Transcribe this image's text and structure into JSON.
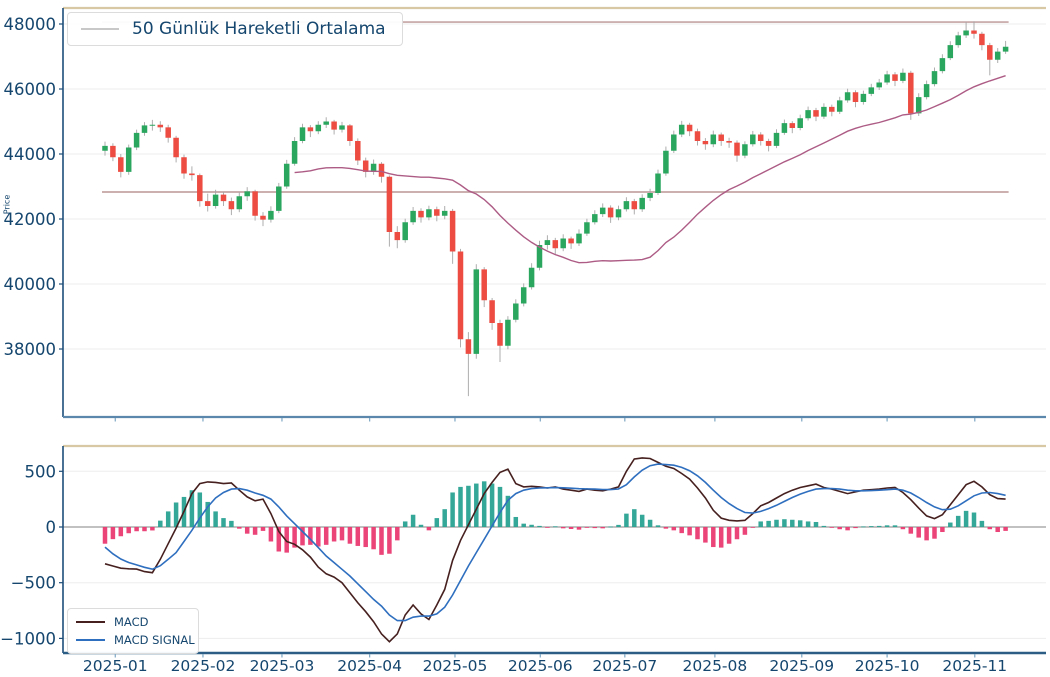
{
  "top_chart": {
    "ylabel": "Price",
    "legend_label": "50 Günlük Hareketli Ortalama",
    "ytick_labels": [
      "48000",
      "46000",
      "44000",
      "42000",
      "40000",
      "38000"
    ],
    "yticks": [
      48000,
      46000,
      44000,
      42000,
      40000,
      38000
    ]
  },
  "bottom_chart": {
    "legend": [
      "MACD",
      "MACD SIGNAL"
    ],
    "ytick_labels": [
      "500",
      "0",
      "−500",
      "−1000"
    ],
    "yticks": [
      500,
      0,
      -500,
      -1000
    ]
  },
  "x_axis": {
    "tick_labels": [
      "2025-01",
      "2025-02",
      "2025-03",
      "2025-04",
      "2025-05",
      "2025-06",
      "2025-07",
      "2025-08",
      "2025-09",
      "2025-10",
      "2025-11"
    ],
    "tick_day_index": [
      1.3,
      12.4,
      22.4,
      33.5,
      44.3,
      55.1,
      65.8,
      77.2,
      88.2,
      99,
      110.1
    ]
  },
  "colors": {
    "up": "#2aa65f",
    "down": "#ec4c41",
    "wick": "#a6a6a6",
    "ma_line": "#ad5c85",
    "hline": "#c2a0a0",
    "macd_line": "#46201f",
    "signal_line": "#2f6fbf",
    "hist_pos": "#2aa293",
    "hist_neg": "#ea3a72",
    "zero_line": "#9c9c9c",
    "grid": "#ededed",
    "spine_top": "#d8c9a4",
    "spine_left": "#1d4e79",
    "spine_bottom_price": "#5b87ad",
    "spine_bottom_macd": "#2b5d85",
    "tick_mark": "#7da7c4",
    "tick_label": "#15466e",
    "legend_sample_ma": "#c8c8c8"
  },
  "chart_data": [
    {
      "type": "candlestick",
      "ylabel": "Price",
      "legend": [
        "50 Günlük Hareketli Ortalama"
      ],
      "ylim": [
        35900,
        48500
      ],
      "yticks": [
        38000,
        40000,
        42000,
        44000,
        46000,
        48000
      ],
      "hlines": [
        48060,
        42830
      ],
      "ma_window_days": 50,
      "sampling_days_per_candle": 2,
      "grid": true,
      "candles": [
        [
          44100,
          44380,
          43950,
          44250
        ],
        [
          44250,
          44330,
          43780,
          43900
        ],
        [
          43900,
          44000,
          43280,
          43450
        ],
        [
          43450,
          44290,
          43360,
          44200
        ],
        [
          44200,
          44750,
          44120,
          44650
        ],
        [
          44650,
          44980,
          44560,
          44880
        ],
        [
          44880,
          45050,
          44720,
          44900
        ],
        [
          44900,
          45010,
          44680,
          44820
        ],
        [
          44820,
          44900,
          44350,
          44500
        ],
        [
          44500,
          44560,
          43740,
          43900
        ],
        [
          43900,
          43980,
          43240,
          43400
        ],
        [
          43400,
          43620,
          43180,
          43350
        ],
        [
          43350,
          43400,
          42380,
          42550
        ],
        [
          42550,
          42780,
          42230,
          42400
        ],
        [
          42400,
          42900,
          42320,
          42750
        ],
        [
          42750,
          42830,
          42400,
          42550
        ],
        [
          42550,
          42660,
          42120,
          42300
        ],
        [
          42300,
          42820,
          42210,
          42700
        ],
        [
          42700,
          42980,
          42560,
          42850
        ],
        [
          42850,
          42900,
          41950,
          42100
        ],
        [
          42100,
          42210,
          41780,
          41980
        ],
        [
          41980,
          42390,
          41890,
          42250
        ],
        [
          42250,
          43110,
          42180,
          43000
        ],
        [
          43000,
          43820,
          42930,
          43700
        ],
        [
          43700,
          44520,
          43640,
          44400
        ],
        [
          44400,
          44930,
          44330,
          44820
        ],
        [
          44820,
          44890,
          44520,
          44700
        ],
        [
          44700,
          45010,
          44610,
          44900
        ],
        [
          44900,
          45130,
          44800,
          45000
        ],
        [
          45000,
          45050,
          44600,
          44750
        ],
        [
          44750,
          44990,
          44660,
          44880
        ],
        [
          44880,
          44920,
          44250,
          44400
        ],
        [
          44400,
          44480,
          43660,
          43800
        ],
        [
          43800,
          43890,
          43280,
          43450
        ],
        [
          43450,
          43830,
          43360,
          43700
        ],
        [
          43700,
          43750,
          43120,
          43300
        ],
        [
          43300,
          43340,
          41150,
          41600
        ],
        [
          41600,
          41780,
          41100,
          41350
        ],
        [
          41350,
          42010,
          41270,
          41900
        ],
        [
          41900,
          42370,
          41820,
          42250
        ],
        [
          42250,
          42330,
          41890,
          42050
        ],
        [
          42050,
          42410,
          41960,
          42300
        ],
        [
          42300,
          42380,
          41930,
          42100
        ],
        [
          42100,
          42400,
          41990,
          42250
        ],
        [
          42250,
          42310,
          40620,
          41000
        ],
        [
          41000,
          41080,
          38050,
          38300
        ],
        [
          38300,
          38520,
          36550,
          37850
        ],
        [
          37850,
          40610,
          37700,
          40450
        ],
        [
          40450,
          40520,
          39290,
          39500
        ],
        [
          39500,
          39570,
          38590,
          38800
        ],
        [
          38800,
          38900,
          37600,
          38100
        ],
        [
          38100,
          39010,
          37990,
          38900
        ],
        [
          38900,
          39530,
          38820,
          39400
        ],
        [
          39400,
          40020,
          39310,
          39900
        ],
        [
          39900,
          40640,
          39830,
          40500
        ],
        [
          40500,
          41330,
          40420,
          41200
        ],
        [
          41200,
          41500,
          41060,
          41350
        ],
        [
          41350,
          41420,
          40910,
          41100
        ],
        [
          41100,
          41530,
          41010,
          41400
        ],
        [
          41400,
          41460,
          41080,
          41250
        ],
        [
          41250,
          41680,
          41170,
          41550
        ],
        [
          41550,
          42010,
          41480,
          41900
        ],
        [
          41900,
          42270,
          41830,
          42150
        ],
        [
          42150,
          42480,
          42060,
          42350
        ],
        [
          42350,
          42420,
          41880,
          42050
        ],
        [
          42050,
          42410,
          41960,
          42300
        ],
        [
          42300,
          42670,
          42230,
          42550
        ],
        [
          42550,
          42620,
          42140,
          42300
        ],
        [
          42300,
          42760,
          42220,
          42650
        ],
        [
          42650,
          42930,
          42550,
          42800
        ],
        [
          42800,
          43520,
          42740,
          43400
        ],
        [
          43400,
          44230,
          43330,
          44100
        ],
        [
          44100,
          44720,
          44030,
          44600
        ],
        [
          44600,
          45020,
          44520,
          44900
        ],
        [
          44900,
          44960,
          44550,
          44700
        ],
        [
          44700,
          44780,
          44260,
          44400
        ],
        [
          44400,
          44490,
          44130,
          44300
        ],
        [
          44300,
          44720,
          44210,
          44600
        ],
        [
          44600,
          44660,
          44250,
          44400
        ],
        [
          44400,
          44500,
          44190,
          44350
        ],
        [
          44350,
          44420,
          43760,
          43950
        ],
        [
          43950,
          44390,
          43870,
          44300
        ],
        [
          44300,
          44710,
          44230,
          44600
        ],
        [
          44600,
          44670,
          44260,
          44400
        ],
        [
          44400,
          44470,
          44080,
          44250
        ],
        [
          44250,
          44760,
          44180,
          44650
        ],
        [
          44650,
          45060,
          44590,
          44950
        ],
        [
          44950,
          45010,
          44640,
          44800
        ],
        [
          44800,
          45210,
          44730,
          45100
        ],
        [
          45100,
          45460,
          45030,
          45350
        ],
        [
          45350,
          45420,
          45010,
          45150
        ],
        [
          45150,
          45560,
          45080,
          45450
        ],
        [
          45450,
          45520,
          45160,
          45300
        ],
        [
          45300,
          45760,
          45230,
          45650
        ],
        [
          45650,
          46010,
          45580,
          45900
        ],
        [
          45900,
          45960,
          45440,
          45600
        ],
        [
          45600,
          45950,
          45520,
          45850
        ],
        [
          45850,
          46160,
          45780,
          46050
        ],
        [
          46050,
          46310,
          45970,
          46200
        ],
        [
          46200,
          46560,
          46130,
          46450
        ],
        [
          46450,
          46520,
          46090,
          46250
        ],
        [
          46250,
          46630,
          46180,
          46500
        ],
        [
          46500,
          46560,
          45050,
          45250
        ],
        [
          45250,
          45870,
          45170,
          45750
        ],
        [
          45750,
          46260,
          45680,
          46150
        ],
        [
          46150,
          46660,
          46080,
          46550
        ],
        [
          46550,
          47070,
          46480,
          46950
        ],
        [
          46950,
          47470,
          46890,
          47350
        ],
        [
          47350,
          47760,
          47270,
          47650
        ],
        [
          47650,
          48060,
          47570,
          47800
        ],
        [
          47800,
          48080,
          47550,
          47700
        ],
        [
          47700,
          47760,
          47190,
          47350
        ],
        [
          47350,
          47420,
          46420,
          46900
        ],
        [
          46900,
          47260,
          46800,
          47150
        ],
        [
          47150,
          47480,
          47080,
          47300
        ]
      ]
    },
    {
      "type": "macd",
      "legend": [
        "MACD",
        "MACD SIGNAL"
      ],
      "ylim": [
        -1131,
        727
      ],
      "yticks": [
        500,
        0,
        -500,
        -1000
      ],
      "macd": [
        -330,
        -350,
        -370,
        -375,
        -378,
        -400,
        -410,
        -290,
        -150,
        -10,
        140,
        300,
        390,
        405,
        400,
        390,
        395,
        330,
        270,
        235,
        250,
        120,
        -40,
        -130,
        -155,
        -205,
        -270,
        -360,
        -420,
        -450,
        -500,
        -590,
        -680,
        -760,
        -850,
        -960,
        -1030,
        -960,
        -790,
        -700,
        -780,
        -830,
        -700,
        -560,
        -300,
        -120,
        20,
        160,
        300,
        400,
        490,
        520,
        390,
        360,
        365,
        360,
        350,
        360,
        340,
        330,
        320,
        340,
        330,
        325,
        340,
        360,
        500,
        610,
        620,
        615,
        580,
        545,
        525,
        480,
        430,
        350,
        260,
        150,
        80,
        60,
        55,
        60,
        120,
        190,
        220,
        260,
        300,
        330,
        355,
        370,
        385,
        355,
        340,
        320,
        300,
        315,
        330,
        335,
        340,
        350,
        355,
        310,
        245,
        170,
        100,
        75,
        110,
        200,
        290,
        380,
        410,
        360,
        290,
        255,
        250
      ],
      "signal": [
        -180,
        -241,
        -287,
        -319,
        -340,
        -362,
        -379,
        -347,
        -290,
        -230,
        -130,
        -30,
        80,
        180,
        260,
        310,
        340,
        345,
        330,
        305,
        285,
        250,
        180,
        100,
        30,
        -40,
        -110,
        -185,
        -260,
        -320,
        -380,
        -440,
        -510,
        -580,
        -650,
        -710,
        -790,
        -840,
        -840,
        -810,
        -800,
        -800,
        -780,
        -720,
        -610,
        -480,
        -350,
        -230,
        -110,
        10,
        130,
        240,
        300,
        330,
        345,
        350,
        352,
        354,
        352,
        348,
        344,
        342,
        340,
        337,
        336,
        341,
        380,
        450,
        510,
        550,
        565,
        560,
        555,
        535,
        505,
        460,
        400,
        330,
        265,
        210,
        165,
        130,
        125,
        140,
        165,
        195,
        230,
        265,
        295,
        320,
        340,
        345,
        345,
        340,
        330,
        325,
        325,
        327,
        330,
        335,
        340,
        330,
        305,
        265,
        220,
        180,
        155,
        160,
        190,
        235,
        280,
        305,
        310,
        300,
        285
      ],
      "histogram": "macd minus signal"
    }
  ]
}
